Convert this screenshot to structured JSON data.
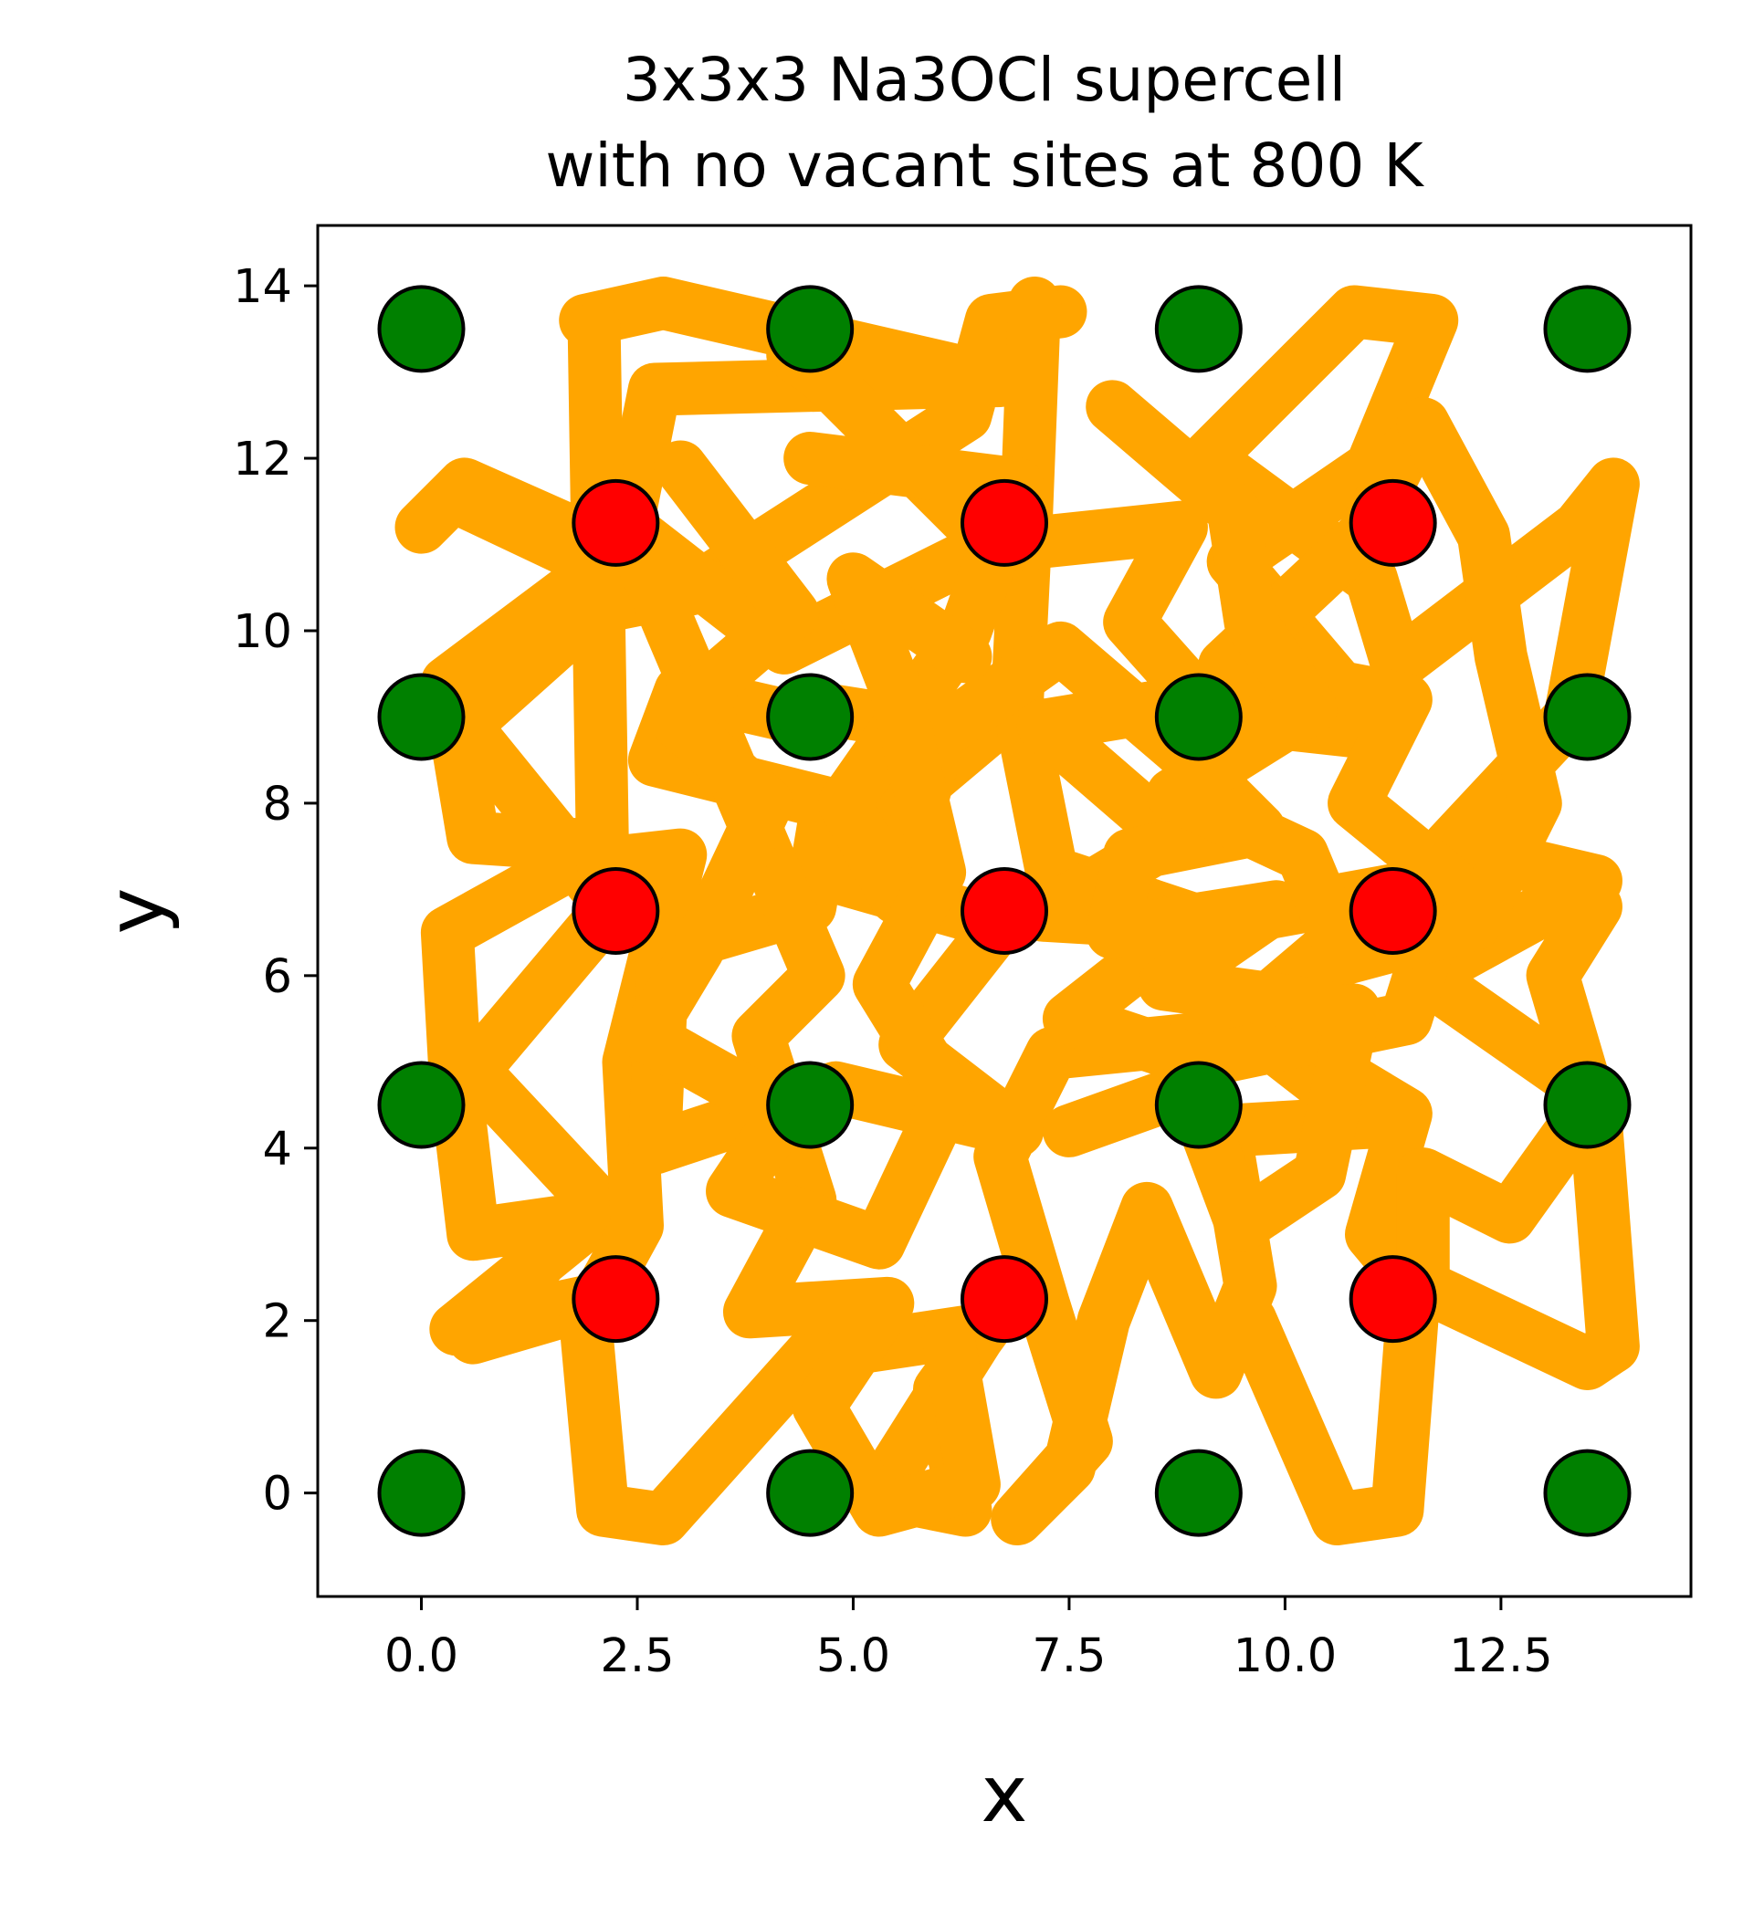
{
  "chart_data": {
    "type": "scatter",
    "title": "3x3x3 Na3OCl supercell\nwith no vacant sites at 800 K",
    "xlabel": "x",
    "ylabel": "y",
    "xlim": [
      -1.2,
      14.7
    ],
    "ylim": [
      -1.2,
      14.7
    ],
    "xticks": [
      0.0,
      2.5,
      5.0,
      7.5,
      10.0,
      12.5
    ],
    "xtick_labels": [
      "0.0",
      "2.5",
      "5.0",
      "7.5",
      "10.0",
      "12.5"
    ],
    "yticks": [
      0,
      2,
      4,
      6,
      8,
      10,
      12,
      14
    ],
    "ytick_labels": [
      "0",
      "2",
      "4",
      "6",
      "8",
      "10",
      "12",
      "14"
    ],
    "grid": false,
    "colors": {
      "trajectory": "#FFA500",
      "green_sites": "#008000",
      "red_sites": "#FF0000",
      "marker_edge": "#000000"
    },
    "series": [
      {
        "kind": "trajectory",
        "color": "#FFA500",
        "paths": [
          [
            [
              0,
              11.2
            ],
            [
              0.5,
              11.7
            ],
            [
              2.3,
              10.9
            ],
            [
              0.3,
              9.4
            ],
            [
              0.6,
              7.6
            ],
            [
              2.1,
              7.5
            ],
            [
              0.3,
              6.5
            ],
            [
              0.4,
              4.7
            ],
            [
              0.6,
              3
            ],
            [
              2.0,
              3.2
            ],
            [
              0.4,
              1.9
            ],
            [
              2.3,
              2.3
            ],
            [
              0.6,
              1.8
            ],
            [
              2.0,
              3.4
            ],
            [
              0.6,
              4.9
            ],
            [
              2.2,
              6.8
            ],
            [
              0.5,
              8.9
            ],
            [
              2.4,
              10.6
            ],
            [
              0.5,
              11.5
            ]
          ],
          [
            [
              1.9,
              13.6
            ],
            [
              2.8,
              13.8
            ],
            [
              6.7,
              12.9
            ],
            [
              2.7,
              12.8
            ],
            [
              2.2,
              10.3
            ],
            [
              3.2,
              10.5
            ],
            [
              6.3,
              12.5
            ],
            [
              6.6,
              13.6
            ],
            [
              7.4,
              13.7
            ]
          ],
          [
            [
              2.0,
              13.5
            ],
            [
              2.1,
              7.3
            ],
            [
              3.0,
              7.4
            ],
            [
              2.4,
              5.0
            ],
            [
              2.5,
              3.1
            ],
            [
              1.9,
              2.0
            ],
            [
              2.1,
              -0.2
            ],
            [
              2.8,
              -0.3
            ],
            [
              4.5,
              1.6
            ],
            [
              6.5,
              1.9
            ],
            [
              5.3,
              0
            ],
            [
              6.3,
              -0.2
            ],
            [
              6.0,
              1.2
            ],
            [
              6.8,
              2.3
            ]
          ],
          [
            [
              4.6,
              9.1
            ],
            [
              6.5,
              8.8
            ],
            [
              4.6,
              7.2
            ],
            [
              6.7,
              6.6
            ],
            [
              5.6,
              5.2
            ],
            [
              6.9,
              4.2
            ],
            [
              4.8,
              4.7
            ],
            [
              2.7,
              4.0
            ],
            [
              2.8,
              6.3
            ],
            [
              4.5,
              6.8
            ],
            [
              4.7,
              8.0
            ],
            [
              2.7,
              8.5
            ],
            [
              3.0,
              9.3
            ],
            [
              4.3,
              9.0
            ]
          ],
          [
            [
              4.3,
              13.2
            ],
            [
              4.6,
              13.0
            ],
            [
              6.6,
              11.0
            ],
            [
              4.2,
              9.8
            ],
            [
              2.4,
              11.2
            ],
            [
              2.9,
              10.0
            ],
            [
              4.6,
              6.0
            ],
            [
              3.9,
              5.3
            ],
            [
              4.5,
              3.4
            ],
            [
              3.8,
              2.1
            ],
            [
              5.4,
              2.2
            ],
            [
              4.6,
              1.0
            ],
            [
              5.3,
              -0.2
            ],
            [
              6.4,
              0.1
            ],
            [
              6.1,
              1.8
            ]
          ],
          [
            [
              7.1,
              13.8
            ],
            [
              7.0,
              11.2
            ],
            [
              6.9,
              9.2
            ],
            [
              7.3,
              7.2
            ],
            [
              9.1,
              6.6
            ],
            [
              11.3,
              7.0
            ],
            [
              9.3,
              5.3
            ],
            [
              7.3,
              5.1
            ],
            [
              6.7,
              3.9
            ],
            [
              7.2,
              2.2
            ],
            [
              7.7,
              0.6
            ],
            [
              6.9,
              -0.3
            ],
            [
              7.5,
              0.3
            ],
            [
              7.9,
              2.0
            ],
            [
              8.4,
              3.3
            ],
            [
              9.2,
              1.4
            ],
            [
              9.6,
              2.4
            ],
            [
              9.3,
              4.2
            ],
            [
              11.0,
              4.3
            ],
            [
              9.2,
              5.7
            ],
            [
              10.4,
              5.0
            ],
            [
              11.4,
              4.4
            ],
            [
              11.0,
              3.0
            ],
            [
              11.5,
              2.4
            ],
            [
              11.3,
              -0.2
            ],
            [
              10.6,
              -0.3
            ],
            [
              9.6,
              2.0
            ]
          ],
          [
            [
              9.3,
              9.0
            ],
            [
              11.1,
              8.8
            ],
            [
              9.4,
              10.8
            ],
            [
              11.0,
              11.9
            ],
            [
              11.7,
              13.6
            ],
            [
              10.8,
              13.7
            ],
            [
              9.1,
              12.0
            ],
            [
              11.0,
              10.6
            ],
            [
              11.3,
              9.6
            ],
            [
              13.4,
              11.2
            ],
            [
              13.8,
              11.7
            ],
            [
              13.3,
              9.0
            ],
            [
              11.9,
              7.5
            ],
            [
              13.6,
              7.1
            ],
            [
              11.6,
              6.0
            ],
            [
              13.6,
              4.6
            ],
            [
              12.6,
              3.2
            ],
            [
              11.6,
              3.7
            ],
            [
              11.6,
              2.4
            ],
            [
              13.5,
              1.5
            ],
            [
              13.8,
              1.7
            ],
            [
              13.6,
              4.3
            ],
            [
              13.1,
              6.0
            ],
            [
              13.6,
              6.8
            ]
          ],
          [
            [
              6.9,
              11.0
            ],
            [
              8.8,
              11.2
            ],
            [
              8.2,
              10.1
            ],
            [
              9.0,
              9.2
            ],
            [
              7.2,
              8.9
            ],
            [
              8.7,
              7.6
            ],
            [
              7.2,
              6.7
            ],
            [
              8.9,
              6.6
            ],
            [
              7.5,
              5.5
            ],
            [
              9.0,
              5.0
            ],
            [
              11.4,
              5.5
            ],
            [
              11.9,
              7.1
            ],
            [
              10.8,
              8.0
            ],
            [
              11.4,
              9.2
            ],
            [
              9.3,
              9.6
            ],
            [
              10.9,
              11.1
            ],
            [
              11.4,
              12.1
            ]
          ],
          [
            [
              4.5,
              12.0
            ],
            [
              6.9,
              11.7
            ],
            [
              6.3,
              10.0
            ],
            [
              4.9,
              8.0
            ],
            [
              5.5,
              6.9
            ],
            [
              6.0,
              8.8
            ],
            [
              7.4,
              9.8
            ],
            [
              8.8,
              8.6
            ],
            [
              9.7,
              7.7
            ],
            [
              8.2,
              7.4
            ],
            [
              8.0,
              6.5
            ],
            [
              9.9,
              6.8
            ],
            [
              8.6,
              5.9
            ],
            [
              10.8,
              5.6
            ],
            [
              10.4,
              3.7
            ],
            [
              9.5,
              3.1
            ],
            [
              8.9,
              4.7
            ],
            [
              7.5,
              4.2
            ]
          ],
          [
            [
              3.0,
              11.9
            ],
            [
              4.3,
              10.2
            ],
            [
              2.9,
              9.0
            ],
            [
              4.0,
              8.0
            ],
            [
              3.2,
              6.3
            ],
            [
              2.6,
              5.3
            ],
            [
              4.2,
              4.4
            ],
            [
              3.6,
              3.5
            ],
            [
              5.3,
              2.9
            ],
            [
              6.1,
              4.6
            ],
            [
              5.3,
              5.9
            ],
            [
              6.0,
              7.2
            ],
            [
              5.5,
              9.3
            ],
            [
              5.0,
              10.6
            ],
            [
              6.3,
              9.7
            ]
          ],
          [
            [
              8.0,
              12.6
            ],
            [
              9.4,
              11.4
            ],
            [
              9.6,
              10.1
            ],
            [
              10.3,
              9.1
            ],
            [
              8.7,
              8.1
            ],
            [
              10.2,
              7.4
            ],
            [
              10.7,
              6.2
            ],
            [
              12.2,
              6.6
            ],
            [
              12.9,
              8.0
            ],
            [
              12.5,
              9.7
            ],
            [
              12.3,
              11.1
            ],
            [
              11.6,
              12.4
            ]
          ]
        ]
      },
      {
        "kind": "sites",
        "color": "#008000",
        "points": [
          [
            0,
            0
          ],
          [
            4.5,
            0
          ],
          [
            9,
            0
          ],
          [
            13.5,
            0
          ],
          [
            0,
            4.5
          ],
          [
            4.5,
            4.5
          ],
          [
            9,
            4.5
          ],
          [
            13.5,
            4.5
          ],
          [
            0,
            9
          ],
          [
            4.5,
            9
          ],
          [
            9,
            9
          ],
          [
            13.5,
            9
          ],
          [
            0,
            13.5
          ],
          [
            4.5,
            13.5
          ],
          [
            9,
            13.5
          ],
          [
            13.5,
            13.5
          ]
        ]
      },
      {
        "kind": "sites",
        "color": "#FF0000",
        "points": [
          [
            2.25,
            2.25
          ],
          [
            6.75,
            2.25
          ],
          [
            11.25,
            2.25
          ],
          [
            2.25,
            6.75
          ],
          [
            6.75,
            6.75
          ],
          [
            11.25,
            6.75
          ],
          [
            2.25,
            11.25
          ],
          [
            6.75,
            11.25
          ],
          [
            11.25,
            11.25
          ]
        ]
      }
    ]
  }
}
